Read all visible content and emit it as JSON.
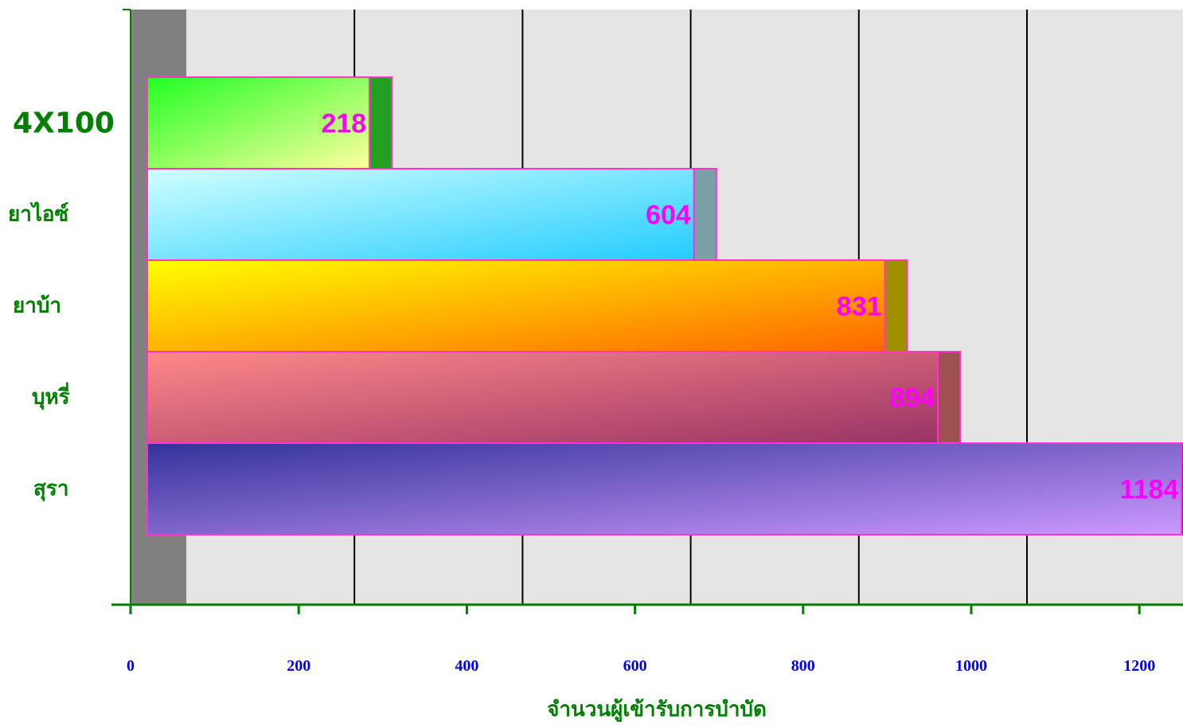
{
  "chart_data": {
    "type": "bar",
    "orientation": "horizontal",
    "categories": [
      "4X100",
      "ยาไอซ์",
      "ยาบ้า",
      "บุหรี่",
      "สุรา"
    ],
    "values": [
      218,
      604,
      831,
      894,
      1184
    ],
    "data_labels": [
      "218",
      "604",
      "831",
      "894",
      "1184"
    ],
    "xlabel": "จำนวนผู้เข้ารับการบำบัด",
    "ylabel": "",
    "xlim": [
      0,
      1250
    ],
    "x_ticks": [
      0,
      200,
      400,
      600,
      800,
      1000,
      1200
    ],
    "x_tick_labels": [
      "0",
      "200",
      "400",
      "600",
      "800",
      "1000",
      "1200"
    ],
    "grid": true,
    "legend": "none",
    "colors": {
      "plot_background": "#e5e5e5",
      "axis": "#008000",
      "gridline": "#000000",
      "wall": "#808080",
      "bar_border": "#ff33cc",
      "value_label": "#ff00ff",
      "tick_label": "#0000ff",
      "category_label": "#008000",
      "bars": [
        {
          "from": "#22ff22",
          "to": "#ffffa0",
          "side": "#22a022"
        },
        {
          "from": "#d0ffff",
          "to": "#22ccff",
          "side": "#7aa0a8"
        },
        {
          "from": "#ffff00",
          "to": "#ff6600",
          "side": "#a09000"
        },
        {
          "from": "#ff8888",
          "to": "#993366",
          "side": "#a05050"
        },
        {
          "from": "#333399",
          "to": "#cc99ff",
          "side": "#333366"
        }
      ]
    }
  }
}
